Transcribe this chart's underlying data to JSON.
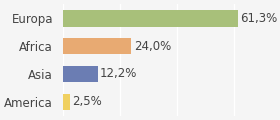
{
  "categories": [
    "America",
    "Asia",
    "Africa",
    "Europa"
  ],
  "values": [
    2.5,
    12.2,
    24.0,
    61.3
  ],
  "labels": [
    "2,5%",
    "12,2%",
    "24,0%",
    "61,3%"
  ],
  "bar_colors": [
    "#f0d060",
    "#6b7db3",
    "#e8aa72",
    "#a8c07a"
  ],
  "background_color": "#f5f5f5",
  "xlim": [
    0,
    70
  ],
  "label_fontsize": 8.5,
  "tick_fontsize": 8.5
}
